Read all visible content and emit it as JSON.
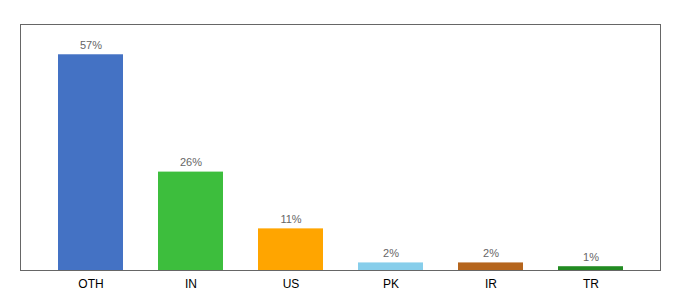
{
  "chart_data": {
    "type": "bar",
    "categories": [
      "OTH",
      "IN",
      "US",
      "PK",
      "IR",
      "TR"
    ],
    "values": [
      57,
      26,
      11,
      2,
      2,
      1
    ],
    "value_labels": [
      "57%",
      "26%",
      "11%",
      "2%",
      "2%",
      "1%"
    ],
    "data_labels": true,
    "colors": [
      "#4472C4",
      "#3DBE3D",
      "#FFA500",
      "#87CEEB",
      "#B5651D",
      "#228B22"
    ],
    "ylim": [
      0,
      65
    ],
    "tick_labels": "x",
    "grid": false
  }
}
